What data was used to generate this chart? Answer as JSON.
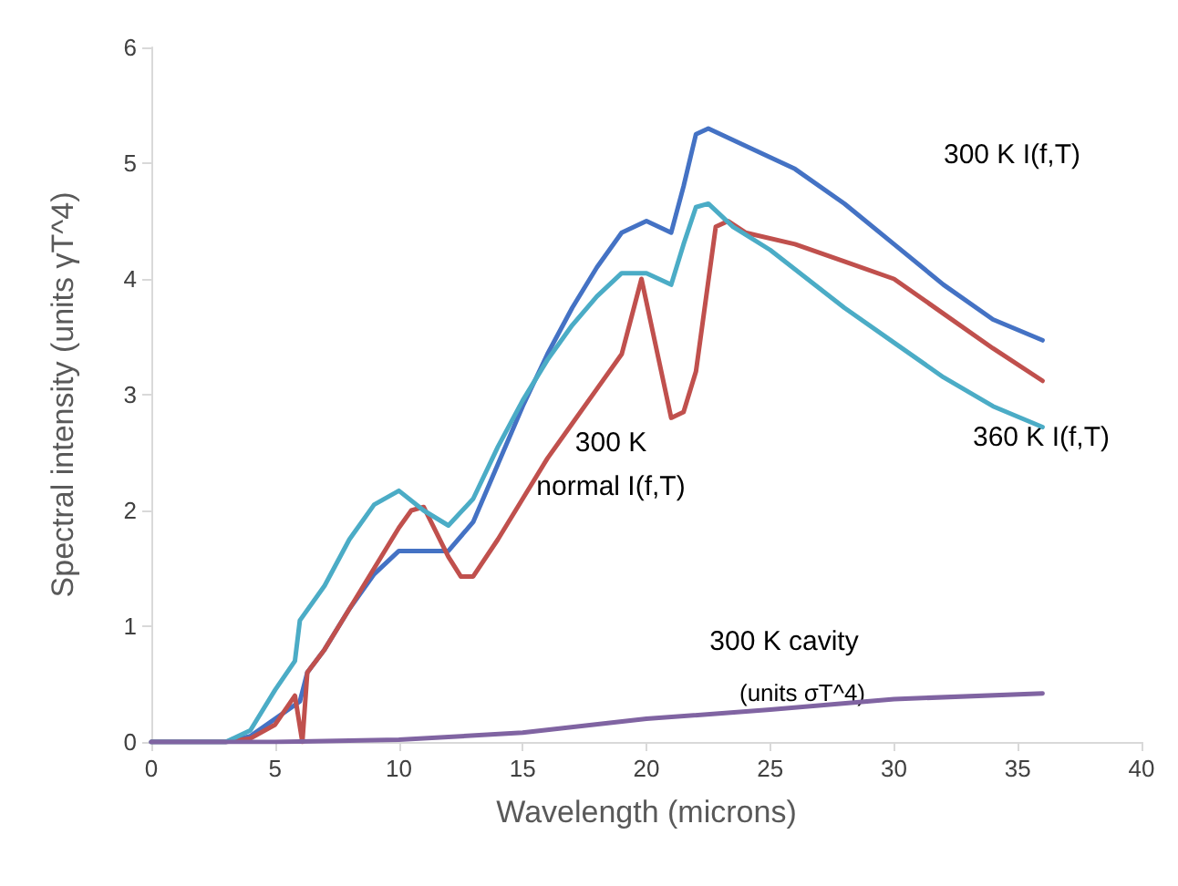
{
  "chart_data": {
    "type": "line",
    "xlabel": "Wavelength (microns)",
    "ylabel": "Spectral intensity (units γT^4)",
    "xlim": [
      0,
      40
    ],
    "xticks": [
      0,
      5,
      10,
      15,
      20,
      25,
      30,
      35,
      40
    ],
    "ylim": [
      0,
      6
    ],
    "yticks": [
      0,
      1,
      2,
      3,
      4,
      5,
      6
    ],
    "grid": false,
    "marker": "none",
    "line_style": "solid",
    "series": [
      {
        "color": "#4472c4",
        "x": [
          0,
          3,
          4,
          5,
          6,
          6.3,
          7,
          8,
          9,
          10,
          11,
          12,
          13,
          14,
          15,
          16,
          17,
          18,
          19,
          20,
          21,
          21.5,
          22,
          22.5,
          24,
          26,
          28,
          30,
          32,
          34,
          36
        ],
        "values": [
          0,
          0,
          0.05,
          0.2,
          0.35,
          0.6,
          0.8,
          1.15,
          1.45,
          1.65,
          1.65,
          1.65,
          1.9,
          2.4,
          2.9,
          3.35,
          3.75,
          4.1,
          4.4,
          4.5,
          4.4,
          4.8,
          5.25,
          5.3,
          5.15,
          4.95,
          4.65,
          4.3,
          3.95,
          3.65,
          3.47
        ]
      },
      {
        "color": "#c0504d",
        "x": [
          0,
          3,
          4,
          5,
          5.8,
          6.1,
          6.3,
          7,
          8,
          9,
          10,
          10.5,
          11,
          12,
          12.5,
          13,
          14,
          15,
          16,
          17,
          18,
          19,
          19.8,
          20.5,
          21,
          21.5,
          22,
          22.8,
          23.3,
          24,
          26,
          28,
          30,
          32,
          34,
          36
        ],
        "values": [
          0,
          0,
          0.03,
          0.15,
          0.4,
          0,
          0.6,
          0.8,
          1.15,
          1.5,
          1.85,
          2,
          2.03,
          1.6,
          1.43,
          1.43,
          1.75,
          2.1,
          2.45,
          2.75,
          3.05,
          3.35,
          4,
          3.3,
          2.8,
          2.85,
          3.2,
          4.45,
          4.5,
          4.4,
          4.3,
          4.15,
          4,
          3.7,
          3.4,
          3.12
        ]
      },
      {
        "color": "#4bacc6",
        "x": [
          0,
          3,
          4,
          5,
          5.8,
          6,
          7,
          8,
          9,
          10,
          11,
          12,
          13,
          14,
          15,
          16,
          17,
          18,
          19,
          20,
          21,
          21.5,
          22,
          22.5,
          23.5,
          25,
          28,
          30,
          32,
          34,
          36
        ],
        "values": [
          0,
          0,
          0.1,
          0.45,
          0.7,
          1.05,
          1.35,
          1.75,
          2.05,
          2.17,
          2,
          1.87,
          2.1,
          2.55,
          2.95,
          3.3,
          3.6,
          3.85,
          4.05,
          4.05,
          3.95,
          4.3,
          4.62,
          4.65,
          4.45,
          4.25,
          3.75,
          3.45,
          3.15,
          2.9,
          2.72
        ]
      },
      {
        "color": "#8064a2",
        "x": [
          0,
          5,
          10,
          15,
          20,
          25,
          30,
          36
        ],
        "values": [
          0,
          0,
          0.02,
          0.08,
          0.2,
          0.28,
          0.37,
          0.42
        ]
      }
    ],
    "annotations": [
      "300 K I(f,T)",
      "360 K I(f,T)",
      "300 K\nnormal I(f,T)",
      "300 K cavity",
      "(units σT^4)"
    ]
  }
}
